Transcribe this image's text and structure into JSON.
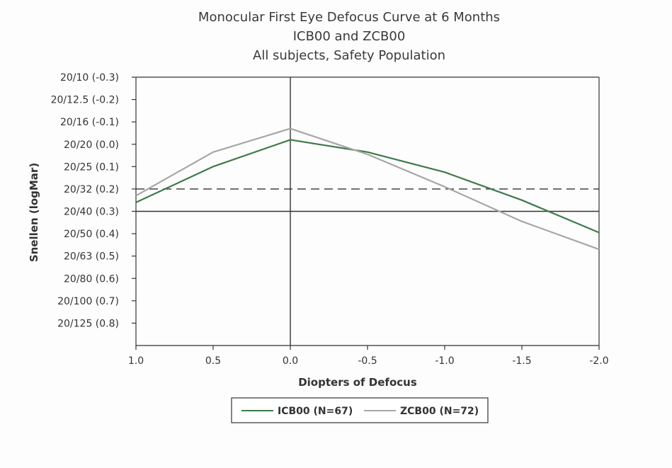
{
  "chart_data": {
    "type": "line",
    "title_lines": [
      "Monocular First Eye Defocus Curve at 6 Months",
      "ICB00 and ZCB00",
      "All subjects, Safety Population"
    ],
    "xlabel": "Diopters of Defocus",
    "ylabel": "Snellen (logMar)",
    "x_ticks": [
      {
        "value": 1.0,
        "label": "1.0"
      },
      {
        "value": 0.5,
        "label": "0.5"
      },
      {
        "value": 0.0,
        "label": "0.0"
      },
      {
        "value": -0.5,
        "label": "-0.5"
      },
      {
        "value": -1.0,
        "label": "-1.0"
      },
      {
        "value": -1.5,
        "label": "-1.5"
      },
      {
        "value": -2.0,
        "label": "-2.0"
      }
    ],
    "y_ticks": [
      {
        "value": -0.3,
        "label": "20/10 (-0.3)"
      },
      {
        "value": -0.2,
        "label": "20/12.5 (-0.2)"
      },
      {
        "value": -0.1,
        "label": "20/16 (-0.1)"
      },
      {
        "value": 0.0,
        "label": "20/20 (0.0)"
      },
      {
        "value": 0.1,
        "label": "20/25 (0.1)"
      },
      {
        "value": 0.2,
        "label": "20/32 (0.2)"
      },
      {
        "value": 0.3,
        "label": "20/40 (0.3)"
      },
      {
        "value": 0.4,
        "label": "20/50 (0.4)"
      },
      {
        "value": 0.5,
        "label": "20/63 (0.5)"
      },
      {
        "value": 0.6,
        "label": "20/80 (0.6)"
      },
      {
        "value": 0.7,
        "label": "20/100 (0.7)"
      },
      {
        "value": 0.8,
        "label": "20/125 (0.8)"
      }
    ],
    "xlim": [
      1.0,
      -2.0
    ],
    "ylim": [
      -0.3,
      0.9
    ],
    "reference_lines": [
      {
        "axis": "y",
        "value": 0.2,
        "style": "dashed",
        "color": "#333333"
      },
      {
        "axis": "y",
        "value": 0.3,
        "style": "solid",
        "color": "#333333"
      },
      {
        "axis": "x",
        "value": 0.0,
        "style": "solid",
        "color": "#333333"
      }
    ],
    "series": [
      {
        "name": "ICB00 (N=67)",
        "color": "#3d7a4a",
        "x": [
          1.0,
          0.5,
          0.0,
          -0.5,
          -1.0,
          -1.5,
          -2.0
        ],
        "y": [
          0.26,
          0.1,
          -0.02,
          0.035,
          0.125,
          0.25,
          0.395
        ]
      },
      {
        "name": "ZCB00 (N=72)",
        "color": "#a8a6a6",
        "x": [
          1.0,
          0.5,
          0.0,
          -0.5,
          -1.0,
          -1.5,
          -2.0
        ],
        "y": [
          0.23,
          0.035,
          -0.07,
          0.045,
          0.19,
          0.345,
          0.47
        ]
      }
    ],
    "legend_position": "bottom-center"
  }
}
